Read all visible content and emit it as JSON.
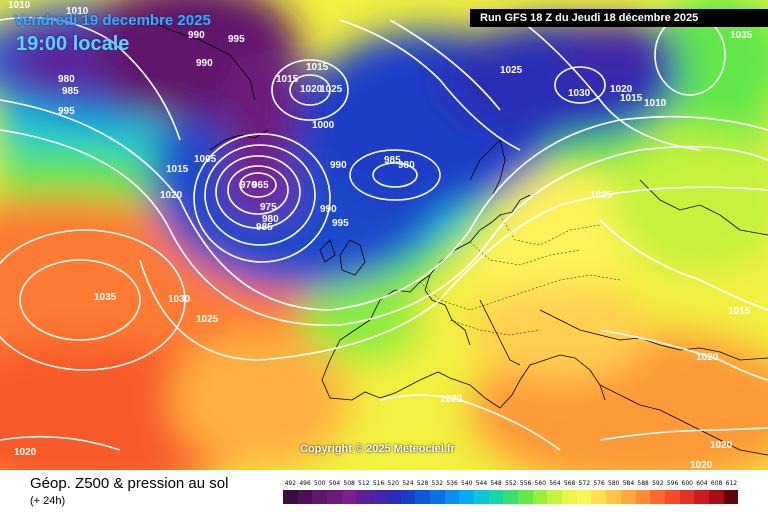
{
  "header": {
    "date_line": "Vendredi 19 decembre 2025",
    "time_line": "19:00 locale",
    "run_info": "Run GFS 18 Z du Jeudi 18 décembre 2025"
  },
  "footer": {
    "title": "Géop. Z500 & pression au sol",
    "subtitle": "(+ 24h)",
    "copyright": "Copyright © 2025 Meteociel.fr"
  },
  "legend": {
    "values": [
      "492",
      "496",
      "500",
      "504",
      "508",
      "512",
      "516",
      "520",
      "524",
      "528",
      "532",
      "536",
      "540",
      "544",
      "548",
      "552",
      "556",
      "560",
      "564",
      "568",
      "572",
      "576",
      "580",
      "584",
      "588",
      "592",
      "596",
      "600",
      "604",
      "608",
      "612"
    ],
    "colors": [
      "#3b0e3e",
      "#4d1255",
      "#60176b",
      "#6e1a7c",
      "#7c1f8c",
      "#5b2298",
      "#4327a6",
      "#2a2fb6",
      "#1a3ec8",
      "#1256d8",
      "#0b6fe6",
      "#0a8ef2",
      "#08aaf2",
      "#0cc6d8",
      "#1ad6a6",
      "#34e070",
      "#62e848",
      "#94ee3a",
      "#c4f23e",
      "#ecf448",
      "#fff35a",
      "#ffe050",
      "#ffc646",
      "#ffa83c",
      "#ff8a34",
      "#ff6a2c",
      "#f84c28",
      "#e63222",
      "#cc1c1c",
      "#a80e12",
      "#60060a"
    ]
  },
  "pressure_labels": [
    "1010",
    "1010",
    "990",
    "995",
    "990",
    "980",
    "985",
    "995",
    "1015",
    "1020",
    "1025",
    "1015",
    "1000",
    "990",
    "985",
    "980",
    "975",
    "970",
    "965",
    "980",
    "985",
    "990",
    "995",
    "1005",
    "1015",
    "1020",
    "1030",
    "1035",
    "1025",
    "1025",
    "1030",
    "1020",
    "1015",
    "1010",
    "1035",
    "1015",
    "1025",
    "1020",
    "1020",
    "1020",
    "1020",
    "1020"
  ]
}
